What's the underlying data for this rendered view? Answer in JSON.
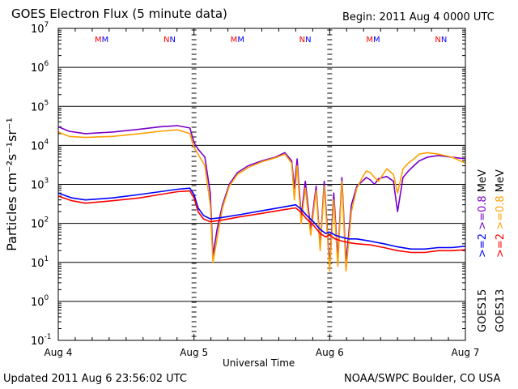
{
  "chart_data": {
    "type": "line",
    "title": "GOES Electron Flux (5 minute data)",
    "begin_label": "Begin: 2011 Aug 4 0000 UTC",
    "updated_label": "Updated 2011 Aug  6 23:56:02 UTC",
    "credit_label": "NOAA/SWPC Boulder, CO USA",
    "xlabel": "Universal Time",
    "ylabel": "Particles cm⁻²s⁻¹sr⁻¹",
    "y_scale": "log",
    "ylim": [
      0.1,
      10000000
    ],
    "xlim": [
      0,
      3
    ],
    "x_ticks": [
      {
        "x": 0,
        "label": "Aug 4"
      },
      {
        "x": 1,
        "label": "Aug 5"
      },
      {
        "x": 2,
        "label": "Aug 6"
      },
      {
        "x": 3,
        "label": "Aug 7"
      }
    ],
    "y_ticks": [
      {
        "exp": 7,
        "mant": "10",
        "sup": "7"
      },
      {
        "exp": 6,
        "mant": "10",
        "sup": "6"
      },
      {
        "exp": 5,
        "mant": "10",
        "sup": "5"
      },
      {
        "exp": 4,
        "mant": "10",
        "sup": "4"
      },
      {
        "exp": 3,
        "mant": "10",
        "sup": "3"
      },
      {
        "exp": 2,
        "mant": "10",
        "sup": "2"
      },
      {
        "exp": 1,
        "mant": "10",
        "sup": "1"
      },
      {
        "exp": 0,
        "mant": "10",
        "sup": "0"
      },
      {
        "exp": -1,
        "mant": "10",
        "sup": "-1"
      }
    ],
    "threshold_line": 1000,
    "day_markers": [
      {
        "x": 0.32,
        "label": "MM"
      },
      {
        "x": 0.82,
        "label": "NN"
      },
      {
        "x": 1.32,
        "label": "MM"
      },
      {
        "x": 1.82,
        "label": "NN"
      },
      {
        "x": 2.32,
        "label": "MM"
      },
      {
        "x": 2.82,
        "label": "NN"
      }
    ],
    "legend": {
      "goes15": "GOES15",
      "goes13": "GOES13",
      "entries": [
        {
          "text": ">=2",
          "color": "#0000ff",
          "col": 0,
          "row": 0
        },
        {
          "text": ">=0.8",
          "color": "#7a00c8",
          "col": 0,
          "row": 1
        },
        {
          "text": "MeV",
          "color": "#000000",
          "col": 0,
          "row": 2
        },
        {
          "text": ">=2",
          "color": "#ff0000",
          "col": 1,
          "row": 0
        },
        {
          "text": ">=0.8",
          "color": "#ffa000",
          "col": 1,
          "row": 1
        },
        {
          "text": "MeV",
          "color": "#000000",
          "col": 1,
          "row": 2
        }
      ]
    },
    "series": [
      {
        "name": "GOES15 >=0.8 MeV",
        "color": "#7a00c8",
        "x": [
          0,
          0.08,
          0.2,
          0.4,
          0.6,
          0.75,
          0.88,
          0.97,
          1.0,
          1.03,
          1.08,
          1.12,
          1.14,
          1.17,
          1.21,
          1.26,
          1.32,
          1.4,
          1.5,
          1.6,
          1.67,
          1.72,
          1.74,
          1.76,
          1.79,
          1.82,
          1.86,
          1.9,
          1.93,
          1.96,
          2.0,
          2.03,
          2.06,
          2.09,
          2.12,
          2.16,
          2.2,
          2.24,
          2.27,
          2.3,
          2.33,
          2.36,
          2.42,
          2.47,
          2.5,
          2.54,
          2.58,
          2.62,
          2.66,
          2.72,
          2.8,
          2.9,
          3.0
        ],
        "y": [
          30000,
          23000,
          20000,
          22000,
          26000,
          30000,
          32000,
          28000,
          12000,
          8000,
          5000,
          600,
          15,
          70,
          300,
          1000,
          2000,
          3000,
          4000,
          5000,
          6500,
          4000,
          800,
          4500,
          150,
          1200,
          70,
          900,
          25,
          1200,
          8,
          600,
          12,
          1500,
          10,
          300,
          900,
          1200,
          1500,
          1300,
          1000,
          1400,
          1600,
          1200,
          200,
          1500,
          2200,
          3000,
          4000,
          5000,
          5500,
          5000,
          4500
        ]
      },
      {
        "name": "GOES13 >=0.8 MeV",
        "color": "#ffa000",
        "x": [
          0,
          0.08,
          0.2,
          0.4,
          0.6,
          0.75,
          0.88,
          0.97,
          1.0,
          1.03,
          1.08,
          1.12,
          1.14,
          1.17,
          1.21,
          1.26,
          1.32,
          1.4,
          1.5,
          1.6,
          1.67,
          1.72,
          1.74,
          1.76,
          1.79,
          1.82,
          1.86,
          1.9,
          1.93,
          1.96,
          2.0,
          2.03,
          2.06,
          2.09,
          2.12,
          2.16,
          2.2,
          2.24,
          2.27,
          2.3,
          2.33,
          2.36,
          2.42,
          2.47,
          2.5,
          2.54,
          2.58,
          2.62,
          2.66,
          2.72,
          2.8,
          2.9,
          3.0
        ],
        "y": [
          22000,
          17000,
          16000,
          17000,
          20000,
          23000,
          25000,
          20000,
          9000,
          6000,
          3000,
          300,
          10,
          40,
          250,
          900,
          1800,
          2700,
          3800,
          4800,
          6000,
          3500,
          400,
          3000,
          100,
          800,
          50,
          700,
          20,
          900,
          6,
          400,
          8,
          1200,
          6,
          200,
          800,
          1500,
          2200,
          2000,
          1500,
          1200,
          2500,
          1800,
          600,
          2500,
          3500,
          4500,
          6000,
          6500,
          6000,
          5000,
          3500
        ]
      },
      {
        "name": "GOES15 >=2 MeV",
        "color": "#0000ff",
        "x": [
          0,
          0.1,
          0.2,
          0.4,
          0.6,
          0.75,
          0.88,
          0.97,
          1.0,
          1.03,
          1.07,
          1.12,
          1.2,
          1.35,
          1.5,
          1.65,
          1.75,
          1.79,
          1.83,
          1.88,
          1.93,
          1.97,
          2.0,
          2.04,
          2.08,
          2.14,
          2.2,
          2.3,
          2.4,
          2.5,
          2.6,
          2.7,
          2.8,
          2.9,
          3.0
        ],
        "y": [
          600,
          450,
          400,
          450,
          550,
          650,
          750,
          800,
          550,
          250,
          160,
          130,
          140,
          170,
          210,
          260,
          300,
          230,
          160,
          110,
          70,
          55,
          60,
          50,
          45,
          40,
          40,
          35,
          30,
          25,
          22,
          22,
          24,
          24,
          26
        ]
      },
      {
        "name": "GOES13 >=2 MeV",
        "color": "#ff0000",
        "x": [
          0,
          0.1,
          0.2,
          0.4,
          0.6,
          0.75,
          0.88,
          0.97,
          1.0,
          1.03,
          1.07,
          1.12,
          1.2,
          1.35,
          1.5,
          1.65,
          1.75,
          1.79,
          1.83,
          1.88,
          1.93,
          1.97,
          2.0,
          2.04,
          2.08,
          2.14,
          2.2,
          2.3,
          2.4,
          2.5,
          2.6,
          2.7,
          2.8,
          2.9,
          3.0
        ],
        "y": [
          500,
          380,
          330,
          380,
          450,
          550,
          650,
          680,
          450,
          200,
          130,
          110,
          120,
          150,
          180,
          220,
          250,
          190,
          130,
          90,
          55,
          45,
          50,
          40,
          36,
          32,
          30,
          28,
          24,
          20,
          18,
          18,
          20,
          20,
          21
        ]
      }
    ]
  }
}
